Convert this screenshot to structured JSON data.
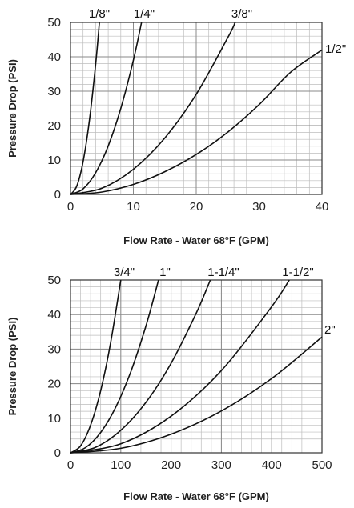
{
  "chart_data": [
    {
      "type": "line",
      "title": "",
      "xlabel": "Flow Rate - Water 68°F (GPM)",
      "ylabel": "Pressure Drop (PSI)",
      "xlim": [
        0,
        40
      ],
      "ylim": [
        0,
        50
      ],
      "x_ticks": [
        "0",
        "10",
        "20",
        "30",
        "40"
      ],
      "y_ticks": [
        "0",
        "10",
        "20",
        "30",
        "40",
        "50"
      ],
      "grid": true,
      "series": [
        {
          "name": "1/8\"",
          "x": [
            0,
            1,
            2,
            3,
            4,
            4.6
          ],
          "y": [
            0,
            2.4,
            9.5,
            21.3,
            37.8,
            50
          ]
        },
        {
          "name": "1/4\"",
          "x": [
            0,
            2,
            4,
            6,
            8,
            10,
            11.3
          ],
          "y": [
            0,
            1.6,
            6.3,
            14.1,
            25,
            39,
            50
          ]
        },
        {
          "name": "3/8\"",
          "x": [
            0,
            5,
            10,
            15,
            20,
            25,
            26.2
          ],
          "y": [
            0,
            1.8,
            7.3,
            16.4,
            29.1,
            45.5,
            50
          ]
        },
        {
          "name": "1/2\"",
          "x": [
            0,
            5,
            10,
            15,
            20,
            25,
            30,
            35,
            40
          ],
          "y": [
            0,
            0.7,
            2.9,
            6.6,
            11.6,
            18.1,
            26.1,
            35.5,
            42
          ]
        }
      ]
    },
    {
      "type": "line",
      "title": "",
      "xlabel": "Flow Rate - Water 68°F (GPM)",
      "ylabel": "Pressure Drop (PSI)",
      "xlim": [
        0,
        500
      ],
      "ylim": [
        0,
        50
      ],
      "x_ticks": [
        "0",
        "100",
        "200",
        "300",
        "400",
        "500"
      ],
      "y_ticks": [
        "0",
        "10",
        "20",
        "30",
        "40",
        "50"
      ],
      "grid": true,
      "series": [
        {
          "name": "3/4\"",
          "x": [
            0,
            20,
            40,
            60,
            80,
            100
          ],
          "y": [
            0,
            2,
            8,
            18,
            32,
            50
          ]
        },
        {
          "name": "1\"",
          "x": [
            0,
            30,
            60,
            90,
            120,
            150,
            175
          ],
          "y": [
            0,
            1.5,
            5.9,
            13.2,
            23.5,
            36.7,
            50
          ]
        },
        {
          "name": "1-1/4\"",
          "x": [
            0,
            50,
            100,
            150,
            200,
            250,
            278
          ],
          "y": [
            0,
            1.6,
            6.5,
            14.6,
            25.9,
            40.4,
            50
          ]
        },
        {
          "name": "1-1/2\"",
          "x": [
            0,
            100,
            200,
            300,
            400,
            435
          ],
          "y": [
            0,
            2.6,
            10.6,
            23.8,
            42.3,
            50
          ]
        },
        {
          "name": "2\"",
          "x": [
            0,
            100,
            200,
            300,
            400,
            500
          ],
          "y": [
            0,
            1.3,
            5.4,
            12.1,
            21.5,
            33.5
          ]
        }
      ]
    }
  ]
}
